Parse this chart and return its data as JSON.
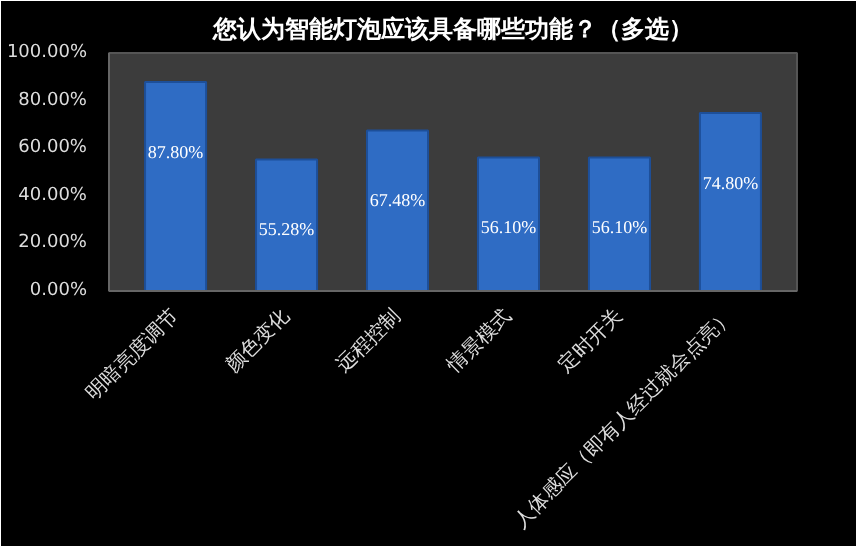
{
  "chart_data": {
    "type": "bar",
    "title": "您认为智能灯泡应该具备哪些功能？（多选）",
    "categories": [
      "明暗亮度调节",
      "颜色变化",
      "远程控制",
      "情景模式",
      "定时开关",
      "人体感应（即有人经过就会点亮）"
    ],
    "values": [
      87.8,
      55.28,
      67.48,
      56.1,
      56.1,
      74.8
    ],
    "value_labels": [
      "87.80%",
      "55.28%",
      "67.48%",
      "56.10%",
      "56.10%",
      "74.80%"
    ],
    "color": "#2f6cc4",
    "ylim": [
      0,
      100
    ],
    "yticks": [
      {
        "value": 0,
        "label": "0.00%"
      },
      {
        "value": 20,
        "label": "20.00%"
      },
      {
        "value": 40,
        "label": "40.00%"
      },
      {
        "value": 60,
        "label": "60.00%"
      },
      {
        "value": 80,
        "label": "80.00%"
      },
      {
        "value": 100,
        "label": "100.00%"
      }
    ],
    "grid": false
  }
}
